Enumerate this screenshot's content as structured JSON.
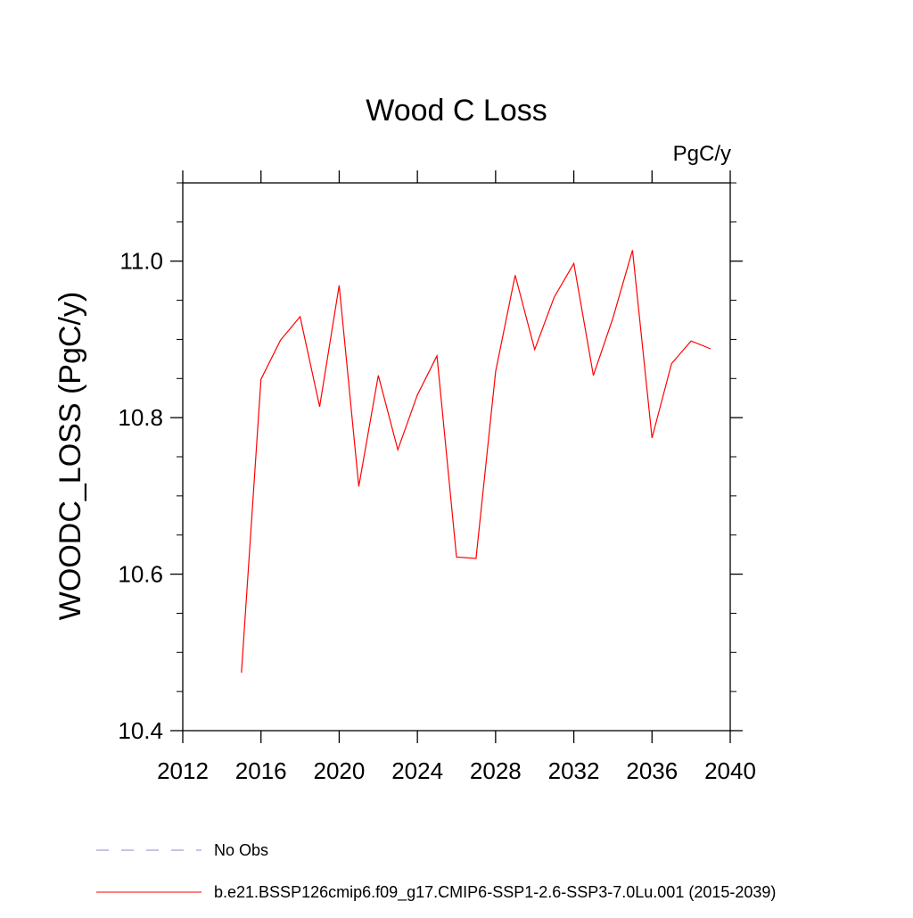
{
  "chart_data": {
    "type": "line",
    "title": "Wood C Loss",
    "units_label": "PgC/y",
    "ylabel": "WOODC_LOSS  (PgC/y)",
    "xlabel": "",
    "xlim": [
      2012,
      2040
    ],
    "ylim": [
      10.4,
      11.1
    ],
    "x_ticks": [
      2012,
      2016,
      2020,
      2024,
      2028,
      2032,
      2036,
      2040
    ],
    "x_tick_labels": [
      "2012",
      "2016",
      "2020",
      "2024",
      "2028",
      "2032",
      "2036",
      "2040"
    ],
    "y_ticks": [
      10.4,
      10.6,
      10.8,
      11.0
    ],
    "y_tick_labels": [
      "10.4",
      "10.6",
      "10.8",
      "11.0"
    ],
    "y_minor_step": 0.05,
    "x_minor_step": 4,
    "grid": false,
    "legend_position": "bottom",
    "series": [
      {
        "name": "b.e21.BSSP126cmip6.f09_g17.CMIP6-SSP1-2.6-SSP3-7.0Lu.001 (2015-2039)",
        "color": "#ff0000",
        "x": [
          2015,
          2016,
          2017,
          2018,
          2019,
          2020,
          2021,
          2022,
          2023,
          2024,
          2025,
          2026,
          2027,
          2028,
          2029,
          2030,
          2031,
          2032,
          2033,
          2034,
          2035,
          2036,
          2037,
          2038,
          2039
        ],
        "values": [
          10.474,
          10.849,
          10.899,
          10.929,
          10.814,
          10.969,
          10.712,
          10.854,
          10.759,
          10.829,
          10.879,
          10.622,
          10.62,
          10.859,
          10.982,
          10.887,
          10.954,
          10.997,
          10.854,
          10.927,
          11.014,
          10.774,
          10.869,
          10.898,
          10.888
        ]
      }
    ],
    "legend": [
      {
        "label": "No Obs",
        "color": "#8888cc",
        "style": "dashed"
      },
      {
        "label": "b.e21.BSSP126cmip6.f09_g17.CMIP6-SSP1-2.6-SSP3-7.0Lu.001 (2015-2039)",
        "color": "#ff0000",
        "style": "solid"
      }
    ]
  }
}
